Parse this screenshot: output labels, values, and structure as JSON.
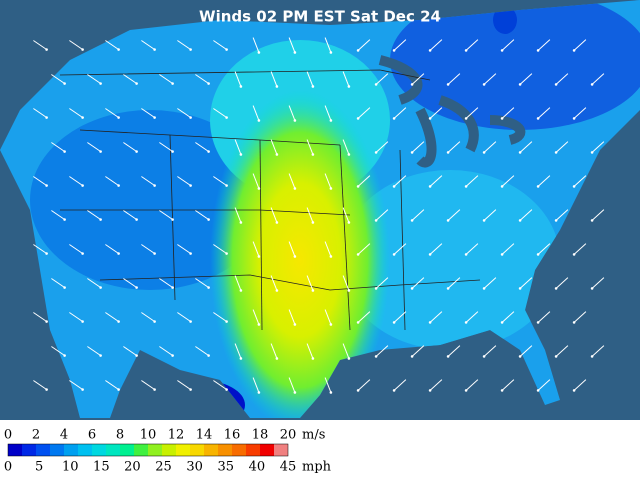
{
  "title": "Winds 02 PM EST Sat Dec 24",
  "legend": {
    "colors": [
      "#0000c8",
      "#0028e6",
      "#0050f0",
      "#0078f0",
      "#00a0f0",
      "#00c0f0",
      "#00d8e0",
      "#00e6c0",
      "#00f090",
      "#40f040",
      "#90f020",
      "#c8f000",
      "#f0f000",
      "#f8d800",
      "#f8b400",
      "#f89000",
      "#f86c00",
      "#f83c00",
      "#f00000",
      "#f08080"
    ],
    "ms_labels": [
      0,
      2,
      4,
      6,
      8,
      10,
      12,
      14,
      16,
      18,
      20
    ],
    "ms_unit": "m/s",
    "mph_labels": [
      0,
      5,
      10,
      15,
      20,
      25,
      30,
      35,
      40,
      45
    ],
    "mph_unit": "mph"
  }
}
